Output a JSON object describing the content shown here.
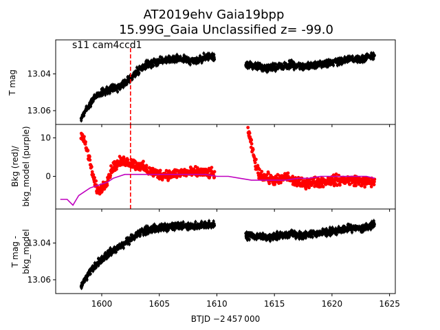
{
  "chart_data": {
    "type": "scatter",
    "title_line1": "AT2019ehv  Gaia19bpp",
    "title_line2": "15.99G_Gaia Unclassified z= -99.0",
    "annotation": "s11 cam4ccd1",
    "xlabel": "BTJD −2 457 000",
    "xlim": [
      1596.0,
      1625.5
    ],
    "x_ticks": [
      1600,
      1605,
      1610,
      1615,
      1620,
      1625
    ],
    "x_tick_labels": [
      "1600",
      "1605",
      "1610",
      "1615",
      "1620",
      "1625"
    ],
    "marker_line_x": 1602.5,
    "colors": {
      "data": "#000000",
      "bkg": "#ff0000",
      "bkg_model": "#bf00bf",
      "marker_line": "#ff0000"
    },
    "panels": [
      {
        "id": "tmag",
        "ylabel": "T mag",
        "ylim": [
          13.0675,
          13.0215
        ],
        "y_ticks": [
          13.04,
          13.06
        ],
        "y_tick_labels": [
          "13.04",
          "13.06"
        ],
        "segments": [
          {
            "x": [
              1598.2,
              1599.0,
              1599.5,
              1600.0,
              1600.5,
              1601.0,
              1601.5,
              1602.0,
              1602.5,
              1603.0,
              1603.5,
              1604.0,
              1604.5,
              1605.0,
              1606.0,
              1607.0,
              1608.0,
              1609.0,
              1609.8
            ],
            "y": [
              13.064,
              13.056,
              13.052,
              13.05,
              13.049,
              13.048,
              13.047,
              13.045,
              13.042,
              13.039,
              13.037,
              13.035,
              13.034,
              13.033,
              13.032,
              13.032,
              13.033,
              13.031,
              13.031
            ]
          },
          {
            "x": [
              1612.5,
              1613.5,
              1614.5,
              1615.5,
              1616.5,
              1617.5,
              1618.5,
              1619.5,
              1620.5,
              1621.5,
              1622.5,
              1623.7
            ],
            "y": [
              13.035,
              13.036,
              13.037,
              13.036,
              13.035,
              13.036,
              13.035,
              13.034,
              13.033,
              13.032,
              13.032,
              13.03
            ]
          }
        ]
      },
      {
        "id": "bkg",
        "ylabel_line1": "Bkg (red)/",
        "ylabel_line2": "bkg_model (purple)",
        "ylim": [
          -8.5,
          13.5
        ],
        "y_ticks": [
          10,
          0
        ],
        "y_tick_labels": [
          "10",
          "0"
        ],
        "bkg_segments": [
          {
            "x": [
              1598.2,
              1598.5,
              1598.8,
              1599.1,
              1599.4,
              1599.7,
              1600.0,
              1600.3,
              1600.6,
              1601.0,
              1601.5,
              1602.0,
              1602.5,
              1603.0,
              1603.5,
              1604.0,
              1604.5,
              1605.0,
              1606.0,
              1607.0,
              1608.0,
              1609.0,
              1609.8
            ],
            "y": [
              11.0,
              9.0,
              6.0,
              2.0,
              -2.0,
              -4.0,
              -3.0,
              -2.0,
              0.0,
              2.5,
              3.5,
              4.0,
              3.5,
              3.0,
              2.5,
              1.5,
              1.0,
              0.5,
              0.5,
              1.0,
              1.0,
              1.0,
              0.5
            ]
          },
          {
            "x": [
              1612.7,
              1613.0,
              1613.3,
              1613.6,
              1614.0,
              1614.5,
              1615.0,
              1615.5,
              1616.0,
              1616.5,
              1617.0,
              1617.5,
              1618.0,
              1619.0,
              1620.0,
              1621.0,
              1622.0,
              1623.0,
              1623.7
            ],
            "y": [
              12.0,
              8.0,
              4.0,
              1.0,
              0.0,
              -0.5,
              -1.0,
              -1.0,
              0.0,
              -1.0,
              -1.5,
              -2.0,
              -1.5,
              -1.5,
              -1.0,
              -1.0,
              -1.0,
              -1.5,
              -1.5
            ]
          }
        ],
        "bkg_model_x": [
          1596.4,
          1597.0,
          1597.5,
          1598.0,
          1598.5,
          1599.0,
          1599.5,
          1600.0,
          1600.5,
          1601.0,
          1601.5,
          1602.0,
          1603.0,
          1604.0,
          1605.0,
          1606.0,
          1607.0,
          1608.0,
          1609.0,
          1610.0,
          1611.0,
          1612.0,
          1613.0,
          1614.0,
          1615.0,
          1616.0,
          1617.0,
          1618.0,
          1619.0,
          1620.0,
          1621.0,
          1622.0,
          1623.0,
          1623.7
        ],
        "bkg_model_y": [
          -6.0,
          -6.0,
          -7.5,
          -5.0,
          -4.0,
          -3.0,
          -2.5,
          -2.0,
          -1.5,
          -0.5,
          0.0,
          0.5,
          0.5,
          0.5,
          0.5,
          0.5,
          0.5,
          0.5,
          0.5,
          0.0,
          0.0,
          -0.5,
          -1.0,
          -1.0,
          -1.0,
          -1.0,
          -0.5,
          -0.5,
          0.0,
          0.0,
          0.0,
          0.0,
          0.0,
          -0.5
        ]
      },
      {
        "id": "tmag-bkg",
        "ylabel_line1": "T mag -",
        "ylabel_line2": "bkg_model",
        "ylim": [
          13.0675,
          13.0215
        ],
        "y_ticks": [
          13.04,
          13.06
        ],
        "y_tick_labels": [
          "13.04",
          "13.06"
        ],
        "segments": [
          {
            "x": [
              1598.2,
              1599.0,
              1599.5,
              1600.0,
              1600.5,
              1601.0,
              1601.5,
              1602.0,
              1602.5,
              1603.0,
              1603.5,
              1604.0,
              1604.5,
              1605.0,
              1606.0,
              1607.0,
              1608.0,
              1609.0,
              1609.8
            ],
            "y": [
              13.064,
              13.055,
              13.052,
              13.049,
              13.046,
              13.044,
              13.042,
              13.04,
              13.038,
              13.036,
              13.034,
              13.033,
              13.032,
              13.032,
              13.031,
              13.031,
              13.031,
              13.03,
              13.03
            ]
          },
          {
            "x": [
              1612.5,
              1613.5,
              1614.5,
              1615.5,
              1616.5,
              1617.5,
              1618.5,
              1619.5,
              1620.5,
              1621.5,
              1622.5,
              1623.7
            ],
            "y": [
              13.036,
              13.036,
              13.037,
              13.036,
              13.035,
              13.036,
              13.035,
              13.034,
              13.033,
              13.032,
              13.032,
              13.03
            ]
          }
        ]
      }
    ]
  }
}
